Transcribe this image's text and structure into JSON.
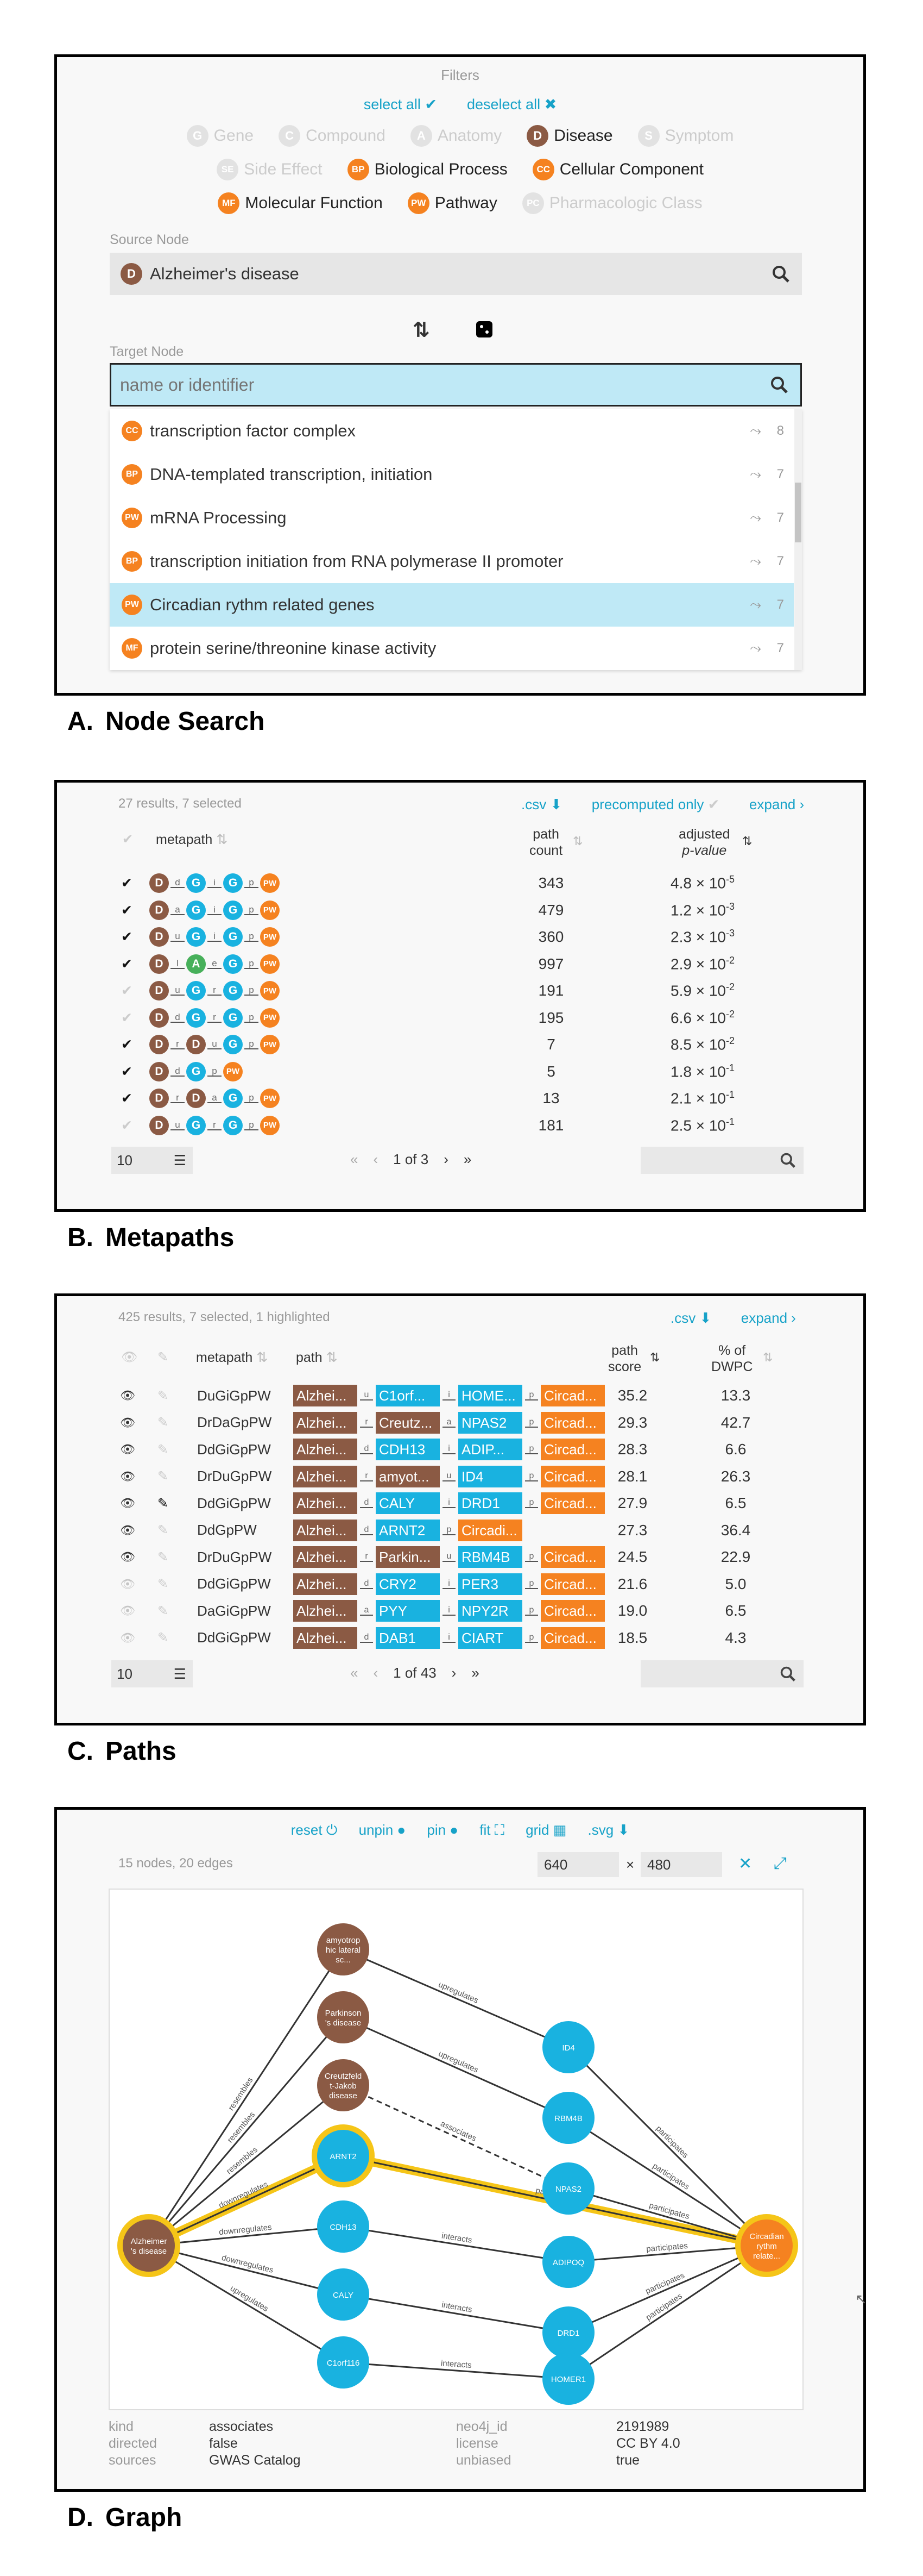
{
  "filters": {
    "title": "Filters",
    "select_all": "select all",
    "deselect_all": "deselect all",
    "rows": [
      [
        {
          "abbr": "G",
          "label": "Gene",
          "active": false
        },
        {
          "abbr": "C",
          "label": "Compound",
          "active": false
        },
        {
          "abbr": "A",
          "label": "Anatomy",
          "active": false
        },
        {
          "abbr": "D",
          "label": "Disease",
          "active": true,
          "color": "#8b5a44"
        },
        {
          "abbr": "S",
          "label": "Symptom",
          "active": false
        }
      ],
      [
        {
          "abbr": "SE",
          "label": "Side Effect",
          "active": false
        },
        {
          "abbr": "BP",
          "label": "Biological Process",
          "active": true,
          "color": "#f58220"
        },
        {
          "abbr": "CC",
          "label": "Cellular Component",
          "active": true,
          "color": "#f58220"
        }
      ],
      [
        {
          "abbr": "MF",
          "label": "Molecular Function",
          "active": true,
          "color": "#f58220"
        },
        {
          "abbr": "PW",
          "label": "Pathway",
          "active": true,
          "color": "#f58220"
        },
        {
          "abbr": "PC",
          "label": "Pharmacologic Class",
          "active": false
        }
      ]
    ]
  },
  "node_search": {
    "source_label": "Source Node",
    "source_badge": "D",
    "source_value": "Alzheimer's disease",
    "target_label": "Target Node",
    "target_placeholder": "name or identifier",
    "results": [
      {
        "badge": "CC",
        "label": "transcription factor complex",
        "count": "8",
        "highlight": false
      },
      {
        "badge": "BP",
        "label": "DNA-templated transcription, initiation",
        "count": "7",
        "highlight": false
      },
      {
        "badge": "PW",
        "label": "mRNA Processing",
        "count": "7",
        "highlight": false
      },
      {
        "badge": "BP",
        "label": "transcription initiation from RNA polymerase II promoter",
        "count": "7",
        "highlight": false
      },
      {
        "badge": "PW",
        "label": "Circadian rythm related genes",
        "count": "7",
        "highlight": true
      },
      {
        "badge": "MF",
        "label": "protein serine/threonine kinase activity",
        "count": "7",
        "highlight": false
      }
    ]
  },
  "captions": {
    "a_letter": "A.",
    "a_title": "Node Search",
    "b_letter": "B.",
    "b_title": "Metapaths",
    "c_letter": "C.",
    "c_title": "Paths",
    "d_letter": "D.",
    "d_title": "Graph"
  },
  "metapaths": {
    "summary": "27 results, 7 selected",
    "csv": ".csv",
    "precomputed": "precomputed only",
    "expand": "expand",
    "col_metapath": "metapath",
    "col_count_1": "path",
    "col_count_2": "count",
    "col_adj_1": "adjusted",
    "col_adj_2": "p-value",
    "rows": [
      {
        "checked": true,
        "nodes": [
          "D",
          "G",
          "G",
          "PW"
        ],
        "edges": [
          "d",
          "i",
          "p"
        ],
        "count": "343",
        "mant": "4.8",
        "exp": "-5"
      },
      {
        "checked": true,
        "nodes": [
          "D",
          "G",
          "G",
          "PW"
        ],
        "edges": [
          "a",
          "i",
          "p"
        ],
        "count": "479",
        "mant": "1.2",
        "exp": "-3"
      },
      {
        "checked": true,
        "nodes": [
          "D",
          "G",
          "G",
          "PW"
        ],
        "edges": [
          "u",
          "i",
          "p"
        ],
        "count": "360",
        "mant": "2.3",
        "exp": "-3"
      },
      {
        "checked": true,
        "nodes": [
          "D",
          "A",
          "G",
          "PW"
        ],
        "edges": [
          "l",
          "e",
          "p"
        ],
        "count": "997",
        "mant": "2.9",
        "exp": "-2"
      },
      {
        "checked": false,
        "nodes": [
          "D",
          "G",
          "G",
          "PW"
        ],
        "edges": [
          "u",
          "r",
          "p"
        ],
        "count": "191",
        "mant": "5.9",
        "exp": "-2"
      },
      {
        "checked": false,
        "nodes": [
          "D",
          "G",
          "G",
          "PW"
        ],
        "edges": [
          "d",
          "r",
          "p"
        ],
        "count": "195",
        "mant": "6.6",
        "exp": "-2"
      },
      {
        "checked": true,
        "nodes": [
          "D",
          "D",
          "G",
          "PW"
        ],
        "edges": [
          "r",
          "u",
          "p"
        ],
        "count": "7",
        "mant": "8.5",
        "exp": "-2"
      },
      {
        "checked": true,
        "nodes": [
          "D",
          "G",
          "PW"
        ],
        "edges": [
          "d",
          "p"
        ],
        "count": "5",
        "mant": "1.8",
        "exp": "-1"
      },
      {
        "checked": true,
        "nodes": [
          "D",
          "D",
          "G",
          "PW"
        ],
        "edges": [
          "r",
          "a",
          "p"
        ],
        "count": "13",
        "mant": "2.1",
        "exp": "-1"
      },
      {
        "checked": false,
        "nodes": [
          "D",
          "G",
          "G",
          "PW"
        ],
        "edges": [
          "u",
          "r",
          "p"
        ],
        "count": "181",
        "mant": "2.5",
        "exp": "-1"
      }
    ],
    "page_size": "10",
    "page": "1 of 3"
  },
  "paths": {
    "summary": "425 results, 7 selected, 1 highlighted",
    "csv": ".csv",
    "expand": "expand",
    "col_metapath": "metapath",
    "col_path": "path",
    "col_score_1": "path",
    "col_score_2": "score",
    "col_pct_1": "% of",
    "col_pct_2": "DWPC",
    "rows": [
      {
        "visible": true,
        "pinned": false,
        "metapath": "DuGiGpPW",
        "nodes": [
          {
            "t": "Alzhei...",
            "c": "D"
          },
          {
            "t": "C1orf...",
            "c": "G"
          },
          {
            "t": "HOME...",
            "c": "G"
          },
          {
            "t": "Circad...",
            "c": "PW"
          }
        ],
        "edges": [
          "u",
          "i",
          "p"
        ],
        "score": "35.2",
        "pct": "13.3"
      },
      {
        "visible": true,
        "pinned": false,
        "metapath": "DrDaGpPW",
        "nodes": [
          {
            "t": "Alzhei...",
            "c": "D"
          },
          {
            "t": "Creutz...",
            "c": "D"
          },
          {
            "t": "NPAS2",
            "c": "G"
          },
          {
            "t": "Circad...",
            "c": "PW"
          }
        ],
        "edges": [
          "r",
          "a",
          "p"
        ],
        "score": "29.3",
        "pct": "42.7"
      },
      {
        "visible": true,
        "pinned": false,
        "metapath": "DdGiGpPW",
        "nodes": [
          {
            "t": "Alzhei...",
            "c": "D"
          },
          {
            "t": "CDH13",
            "c": "G"
          },
          {
            "t": "ADIP...",
            "c": "G"
          },
          {
            "t": "Circad...",
            "c": "PW"
          }
        ],
        "edges": [
          "d",
          "i",
          "p"
        ],
        "score": "28.3",
        "pct": "6.6"
      },
      {
        "visible": true,
        "pinned": false,
        "metapath": "DrDuGpPW",
        "nodes": [
          {
            "t": "Alzhei...",
            "c": "D"
          },
          {
            "t": "amyot...",
            "c": "D"
          },
          {
            "t": "ID4",
            "c": "G"
          },
          {
            "t": "Circad...",
            "c": "PW"
          }
        ],
        "edges": [
          "r",
          "u",
          "p"
        ],
        "score": "28.1",
        "pct": "26.3"
      },
      {
        "visible": true,
        "pinned": true,
        "metapath": "DdGiGpPW",
        "nodes": [
          {
            "t": "Alzhei...",
            "c": "D"
          },
          {
            "t": "CALY",
            "c": "G"
          },
          {
            "t": "DRD1",
            "c": "G"
          },
          {
            "t": "Circad...",
            "c": "PW"
          }
        ],
        "edges": [
          "d",
          "i",
          "p"
        ],
        "score": "27.9",
        "pct": "6.5"
      },
      {
        "visible": true,
        "pinned": false,
        "metapath": "DdGpPW",
        "nodes": [
          {
            "t": "Alzhei...",
            "c": "D"
          },
          {
            "t": "ARNT2",
            "c": "G"
          },
          {
            "t": "Circadi...",
            "c": "PW"
          }
        ],
        "edges": [
          "d",
          "p"
        ],
        "score": "27.3",
        "pct": "36.4"
      },
      {
        "visible": true,
        "pinned": false,
        "metapath": "DrDuGpPW",
        "nodes": [
          {
            "t": "Alzhei...",
            "c": "D"
          },
          {
            "t": "Parkin...",
            "c": "D"
          },
          {
            "t": "RBM4B",
            "c": "G"
          },
          {
            "t": "Circad...",
            "c": "PW"
          }
        ],
        "edges": [
          "r",
          "u",
          "p"
        ],
        "score": "24.5",
        "pct": "22.9"
      },
      {
        "visible": false,
        "pinned": false,
        "metapath": "DdGiGpPW",
        "nodes": [
          {
            "t": "Alzhei...",
            "c": "D"
          },
          {
            "t": "CRY2",
            "c": "G"
          },
          {
            "t": "PER3",
            "c": "G"
          },
          {
            "t": "Circad...",
            "c": "PW"
          }
        ],
        "edges": [
          "d",
          "i",
          "p"
        ],
        "score": "21.6",
        "pct": "5.0"
      },
      {
        "visible": false,
        "pinned": false,
        "metapath": "DaGiGpPW",
        "nodes": [
          {
            "t": "Alzhei...",
            "c": "D"
          },
          {
            "t": "PYY",
            "c": "G"
          },
          {
            "t": "NPY2R",
            "c": "G"
          },
          {
            "t": "Circad...",
            "c": "PW"
          }
        ],
        "edges": [
          "a",
          "i",
          "p"
        ],
        "score": "19.0",
        "pct": "6.5"
      },
      {
        "visible": false,
        "pinned": false,
        "metapath": "DdGiGpPW",
        "nodes": [
          {
            "t": "Alzhei...",
            "c": "D"
          },
          {
            "t": "DAB1",
            "c": "G"
          },
          {
            "t": "CIART",
            "c": "G"
          },
          {
            "t": "Circad...",
            "c": "PW"
          }
        ],
        "edges": [
          "d",
          "i",
          "p"
        ],
        "score": "18.5",
        "pct": "4.3"
      }
    ],
    "page_size": "10",
    "page": "1 of 43"
  },
  "graph": {
    "toolbar": {
      "reset": "reset",
      "unpin": "unpin",
      "pin": "pin",
      "fit": "fit",
      "grid": "grid",
      "svg": ".svg"
    },
    "summary": "15 nodes, 20 edges",
    "width": "640",
    "times": "×",
    "height": "480",
    "nodes": [
      {
        "id": "alz",
        "label": [
          "Alzheimer",
          "'s disease"
        ],
        "type": "D",
        "hl": true
      },
      {
        "id": "amy",
        "label": [
          "amyotrop",
          "hic lateral",
          "sc..."
        ],
        "type": "D",
        "hl": false
      },
      {
        "id": "park",
        "label": [
          "Parkinson",
          "'s disease"
        ],
        "type": "D",
        "hl": false
      },
      {
        "id": "creutz",
        "label": [
          "Creutzfeld",
          "t-Jakob",
          "disease"
        ],
        "type": "D",
        "hl": false
      },
      {
        "id": "arnt2",
        "label": [
          "ARNT2"
        ],
        "type": "G",
        "hl": true
      },
      {
        "id": "cdh13",
        "label": [
          "CDH13"
        ],
        "type": "G",
        "hl": false
      },
      {
        "id": "caly",
        "label": [
          "CALY"
        ],
        "type": "G",
        "hl": false
      },
      {
        "id": "c1orf",
        "label": [
          "C1orf116"
        ],
        "type": "G",
        "hl": false
      },
      {
        "id": "id4",
        "label": [
          "ID4"
        ],
        "type": "G",
        "hl": false
      },
      {
        "id": "rbm4b",
        "label": [
          "RBM4B"
        ],
        "type": "G",
        "hl": false
      },
      {
        "id": "npas2",
        "label": [
          "NPAS2"
        ],
        "type": "G",
        "hl": false
      },
      {
        "id": "adipoq",
        "label": [
          "ADIPOQ"
        ],
        "type": "G",
        "hl": false
      },
      {
        "id": "drd1",
        "label": [
          "DRD1"
        ],
        "type": "G",
        "hl": false
      },
      {
        "id": "homer1",
        "label": [
          "HOMER1"
        ],
        "type": "G",
        "hl": false
      },
      {
        "id": "circ",
        "label": [
          "Circadian",
          "rythm",
          "relate..."
        ],
        "type": "PW",
        "hl": true
      }
    ],
    "edges": [
      {
        "s": "alz",
        "t": "amy",
        "label": "resembles"
      },
      {
        "s": "alz",
        "t": "park",
        "label": "resembles"
      },
      {
        "s": "alz",
        "t": "creutz",
        "label": "resembles"
      },
      {
        "s": "alz",
        "t": "arnt2",
        "label": "downregulates",
        "hl": true
      },
      {
        "s": "alz",
        "t": "cdh13",
        "label": "downregulates"
      },
      {
        "s": "alz",
        "t": "caly",
        "label": "downregulates"
      },
      {
        "s": "alz",
        "t": "c1orf",
        "label": "upregulates"
      },
      {
        "s": "amy",
        "t": "id4",
        "label": "upregulates"
      },
      {
        "s": "park",
        "t": "rbm4b",
        "label": "upregulates"
      },
      {
        "s": "creutz",
        "t": "npas2",
        "label": "associates",
        "dashed": true
      },
      {
        "s": "arnt2",
        "t": "circ",
        "label": "participates",
        "hl": true
      },
      {
        "s": "cdh13",
        "t": "adipoq",
        "label": "interacts"
      },
      {
        "s": "caly",
        "t": "drd1",
        "label": "interacts"
      },
      {
        "s": "c1orf",
        "t": "homer1",
        "label": "interacts"
      },
      {
        "s": "id4",
        "t": "circ",
        "label": "participates"
      },
      {
        "s": "rbm4b",
        "t": "circ",
        "label": "participates"
      },
      {
        "s": "npas2",
        "t": "circ",
        "label": "participates"
      },
      {
        "s": "adipoq",
        "t": "circ",
        "label": "participates"
      },
      {
        "s": "drd1",
        "t": "circ",
        "label": "participates"
      },
      {
        "s": "homer1",
        "t": "circ",
        "label": "participates"
      }
    ],
    "info": {
      "kind_k": "kind",
      "kind_v": "associates",
      "directed_k": "directed",
      "directed_v": "false",
      "sources_k": "sources",
      "sources_v": "GWAS Catalog",
      "neo_k": "neo4j_id",
      "neo_v": "2191989",
      "license_k": "license",
      "license_v": "CC BY 4.0",
      "unbiased_k": "unbiased",
      "unbiased_v": "true"
    }
  },
  "colors": {
    "disease": "#8b5a44",
    "gene": "#19b2e0",
    "pathway": "#f58220",
    "accent": "#17a2c8",
    "highlight_row": "#bfe9f6",
    "halo": "#f5c518"
  }
}
